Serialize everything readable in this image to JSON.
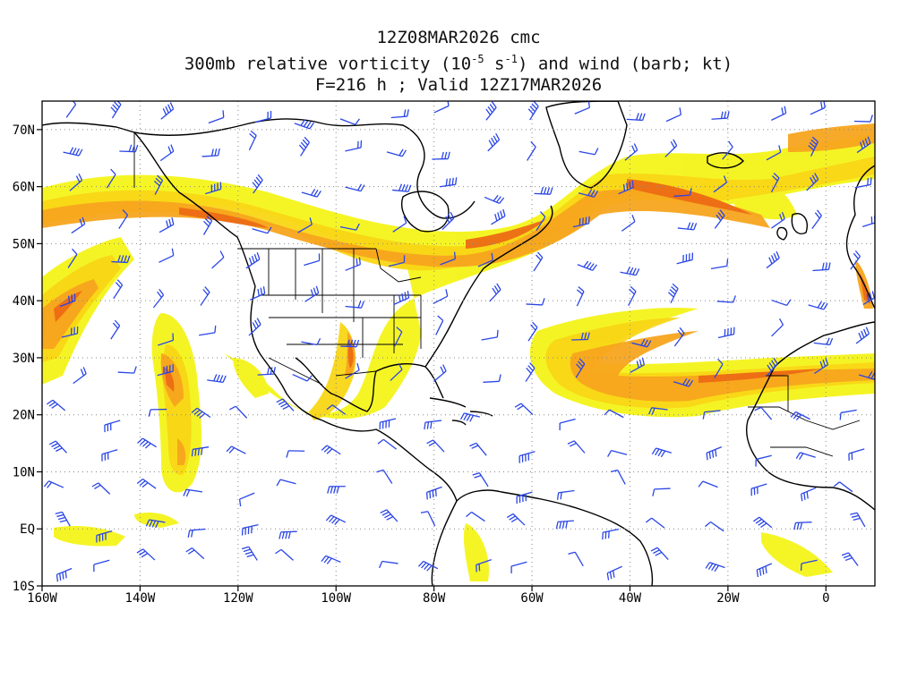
{
  "header": {
    "line1": "12Z08MAR2026 cmc",
    "line2_a": "300mb relative vorticity (10",
    "line2_sup1": "-5",
    "line2_b": " s",
    "line2_sup2": "-1",
    "line2_c": ") and wind (barb; kt)",
    "line3": "F=216 h ; Valid 12Z17MAR2026"
  },
  "axes": {
    "x_ticks": [
      "160W",
      "140W",
      "120W",
      "100W",
      "80W",
      "60W",
      "40W",
      "20W",
      "0"
    ],
    "y_ticks": [
      "70N",
      "60N",
      "50N",
      "40N",
      "30N",
      "20N",
      "10N",
      "EQ",
      "10S"
    ]
  },
  "map_data": {
    "lon_range": [
      -160,
      10
    ],
    "lat_range": [
      -10,
      75
    ],
    "x_tick_values": [
      -160,
      -140,
      -120,
      -100,
      -80,
      -60,
      -40,
      -20,
      0
    ],
    "y_tick_values": [
      70,
      60,
      50,
      40,
      30,
      20,
      10,
      0,
      -10
    ],
    "grid": "dotted",
    "colors": {
      "light": "#f4f41a",
      "yellow": "#f9d616",
      "orange": "#f7a51e",
      "dark": "#ec6a14",
      "barb": "#2a46e6",
      "coast": "#000000"
    }
  }
}
